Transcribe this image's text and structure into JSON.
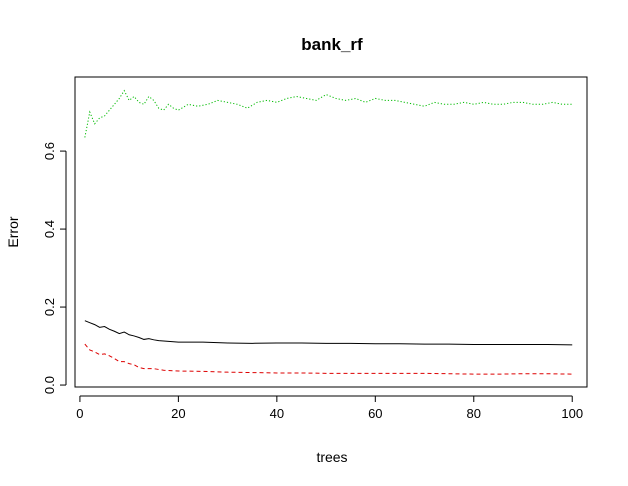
{
  "chart_data": {
    "type": "line",
    "title": "bank_rf",
    "xlabel": "trees",
    "ylabel": "Error",
    "xlim": [
      -1,
      103
    ],
    "ylim": [
      -0.005,
      0.79
    ],
    "xticks": [
      0,
      20,
      40,
      60,
      80,
      100
    ],
    "yticks": [
      0.0,
      0.2,
      0.4,
      0.6
    ],
    "xtick_labels": [
      "0",
      "20",
      "40",
      "60",
      "80",
      "100"
    ],
    "ytick_labels": [
      "0.0",
      "0.2",
      "0.4",
      "0.6"
    ],
    "grid": false,
    "legend": "none",
    "series": [
      {
        "color": "#000000",
        "dash": "solid",
        "x": [
          1,
          2,
          3,
          4,
          5,
          6,
          7,
          8,
          9,
          10,
          11,
          12,
          13,
          14,
          15,
          16,
          18,
          20,
          25,
          30,
          35,
          40,
          45,
          50,
          55,
          60,
          65,
          70,
          75,
          80,
          85,
          90,
          95,
          100
        ],
        "y": [
          0.165,
          0.16,
          0.155,
          0.148,
          0.15,
          0.143,
          0.138,
          0.132,
          0.136,
          0.129,
          0.126,
          0.122,
          0.117,
          0.119,
          0.116,
          0.114,
          0.112,
          0.11,
          0.11,
          0.108,
          0.107,
          0.108,
          0.108,
          0.107,
          0.107,
          0.106,
          0.106,
          0.105,
          0.105,
          0.104,
          0.104,
          0.104,
          0.104,
          0.103
        ]
      },
      {
        "color": "#dd0000",
        "dash": "dashed",
        "x": [
          1,
          2,
          3,
          4,
          5,
          6,
          7,
          8,
          9,
          10,
          11,
          12,
          13,
          15,
          17,
          20,
          25,
          30,
          35,
          40,
          45,
          50,
          55,
          60,
          65,
          70,
          75,
          80,
          85,
          90,
          95,
          100
        ],
        "y": [
          0.105,
          0.09,
          0.085,
          0.078,
          0.08,
          0.075,
          0.068,
          0.06,
          0.06,
          0.055,
          0.052,
          0.045,
          0.042,
          0.042,
          0.038,
          0.036,
          0.035,
          0.033,
          0.032,
          0.031,
          0.031,
          0.03,
          0.03,
          0.03,
          0.03,
          0.03,
          0.029,
          0.028,
          0.028,
          0.029,
          0.029,
          0.028
        ]
      },
      {
        "color": "#00bb00",
        "dash": "dotted",
        "x": [
          1,
          2,
          3,
          4,
          5,
          6,
          7,
          8,
          9,
          10,
          11,
          12,
          13,
          14,
          15,
          16,
          17,
          18,
          19,
          20,
          22,
          24,
          26,
          28,
          30,
          32,
          34,
          36,
          38,
          40,
          42,
          44,
          46,
          48,
          50,
          52,
          54,
          56,
          58,
          60,
          62,
          64,
          66,
          68,
          70,
          72,
          74,
          76,
          78,
          80,
          82,
          84,
          86,
          88,
          90,
          92,
          94,
          96,
          98,
          100
        ],
        "y": [
          0.635,
          0.7,
          0.67,
          0.685,
          0.69,
          0.705,
          0.72,
          0.735,
          0.755,
          0.73,
          0.74,
          0.725,
          0.72,
          0.74,
          0.73,
          0.71,
          0.705,
          0.72,
          0.71,
          0.705,
          0.72,
          0.715,
          0.72,
          0.73,
          0.725,
          0.72,
          0.71,
          0.725,
          0.73,
          0.725,
          0.735,
          0.74,
          0.735,
          0.73,
          0.745,
          0.735,
          0.73,
          0.735,
          0.725,
          0.735,
          0.73,
          0.73,
          0.725,
          0.72,
          0.715,
          0.725,
          0.72,
          0.72,
          0.725,
          0.72,
          0.725,
          0.72,
          0.72,
          0.725,
          0.725,
          0.72,
          0.72,
          0.725,
          0.72,
          0.72
        ]
      }
    ]
  }
}
